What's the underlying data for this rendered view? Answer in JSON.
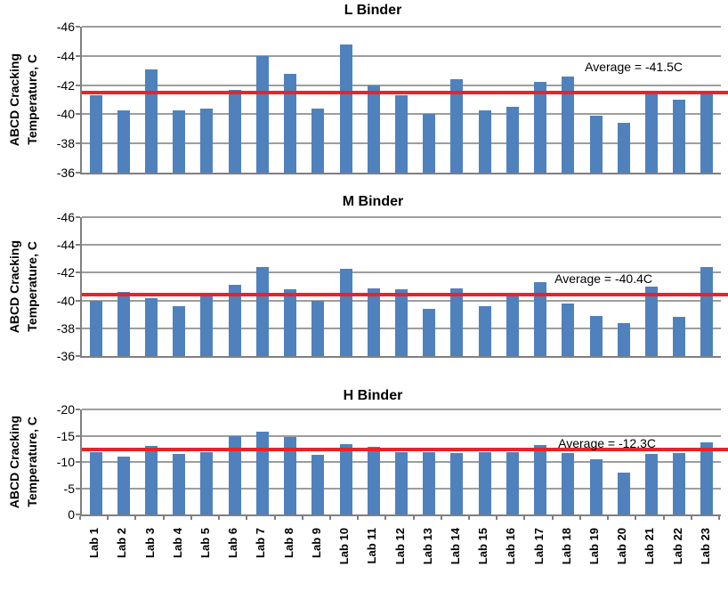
{
  "colors": {
    "background": "#ffffff",
    "bar": "#4f81bd",
    "average_line": "#eb2227",
    "gridline": "#9d9d9d",
    "axis": "#7f7f7f",
    "text": "#000000"
  },
  "axis_title": {
    "line1": "ABCD Cracking",
    "line2": "Temperature, C"
  },
  "chart_data": [
    {
      "type": "bar",
      "title": "L Binder",
      "ylabel": "ABCD Cracking Temperature, C",
      "xlabel": "",
      "ylim": [
        -36,
        -46
      ],
      "yticks": [
        -46,
        -44,
        -42,
        -40,
        -38,
        -36
      ],
      "grid": true,
      "legend": false,
      "categories": [
        "Lab 1",
        "Lab 2",
        "Lab 3",
        "Lab 4",
        "Lab 5",
        "Lab 6",
        "Lab 7",
        "Lab 8",
        "Lab 9",
        "Lab 10",
        "Lab 11",
        "Lab 12",
        "Lab 13",
        "Lab 14",
        "Lab 15",
        "Lab 16",
        "Lab 17",
        "Lab 18",
        "Lab 19",
        "Lab 20",
        "Lab 21",
        "Lab 22",
        "Lab 23"
      ],
      "values": [
        -41.3,
        -40.3,
        -43.1,
        -40.3,
        -40.4,
        -41.7,
        -44.0,
        -42.8,
        -40.4,
        -44.8,
        -42.0,
        -41.3,
        -40.0,
        -42.4,
        -40.3,
        -40.5,
        -42.2,
        -42.6,
        -39.9,
        -39.4,
        -41.4,
        -41.0,
        -41.4
      ],
      "average_value": -41.5,
      "average_label": "Average = -41.5C"
    },
    {
      "type": "bar",
      "title": "M Binder",
      "ylabel": "ABCD Cracking Temperature, C",
      "xlabel": "",
      "ylim": [
        -36,
        -46
      ],
      "yticks": [
        -46,
        -44,
        -42,
        -40,
        -38,
        -36
      ],
      "grid": true,
      "legend": false,
      "categories": [
        "Lab 1",
        "Lab 2",
        "Lab 3",
        "Lab 4",
        "Lab 5",
        "Lab 6",
        "Lab 7",
        "Lab 8",
        "Lab 9",
        "Lab 10",
        "Lab 11",
        "Lab 12",
        "Lab 13",
        "Lab 14",
        "Lab 15",
        "Lab 16",
        "Lab 17",
        "Lab 18",
        "Lab 19",
        "Lab 20",
        "Lab 21",
        "Lab 22",
        "Lab 23"
      ],
      "values": [
        -40.0,
        -40.6,
        -40.2,
        -39.6,
        -40.3,
        -41.1,
        -42.4,
        -40.8,
        -40.0,
        -42.3,
        -40.9,
        -40.8,
        -39.4,
        -40.9,
        -39.6,
        -40.3,
        -41.3,
        -39.8,
        -38.9,
        -38.4,
        -41.0,
        -38.8,
        -42.4
      ],
      "average_value": -40.4,
      "average_label": "Average = -40.4C"
    },
    {
      "type": "bar",
      "title": "H Binder",
      "ylabel": "ABCD Cracking Temperature, C",
      "xlabel": "",
      "ylim": [
        0,
        -20
      ],
      "yticks": [
        -20,
        -15,
        -10,
        -5,
        0
      ],
      "grid": true,
      "legend": false,
      "categories": [
        "Lab 1",
        "Lab 2",
        "Lab 3",
        "Lab 4",
        "Lab 5",
        "Lab 6",
        "Lab 7",
        "Lab 8",
        "Lab 9",
        "Lab 10",
        "Lab 11",
        "Lab 12",
        "Lab 13",
        "Lab 14",
        "Lab 15",
        "Lab 16",
        "Lab 17",
        "Lab 18",
        "Lab 19",
        "Lab 20",
        "Lab 21",
        "Lab 22",
        "Lab 23"
      ],
      "values": [
        -11.8,
        -11.1,
        -13.0,
        -11.5,
        -11.9,
        -15.0,
        -15.8,
        -14.7,
        -11.3,
        -13.4,
        -12.9,
        -11.9,
        -11.9,
        -11.7,
        -11.9,
        -11.9,
        -13.2,
        -11.7,
        -10.6,
        -8.0,
        -11.5,
        -11.7,
        -13.7
      ],
      "average_value": -12.3,
      "average_label": "Average = -12.3C"
    }
  ]
}
